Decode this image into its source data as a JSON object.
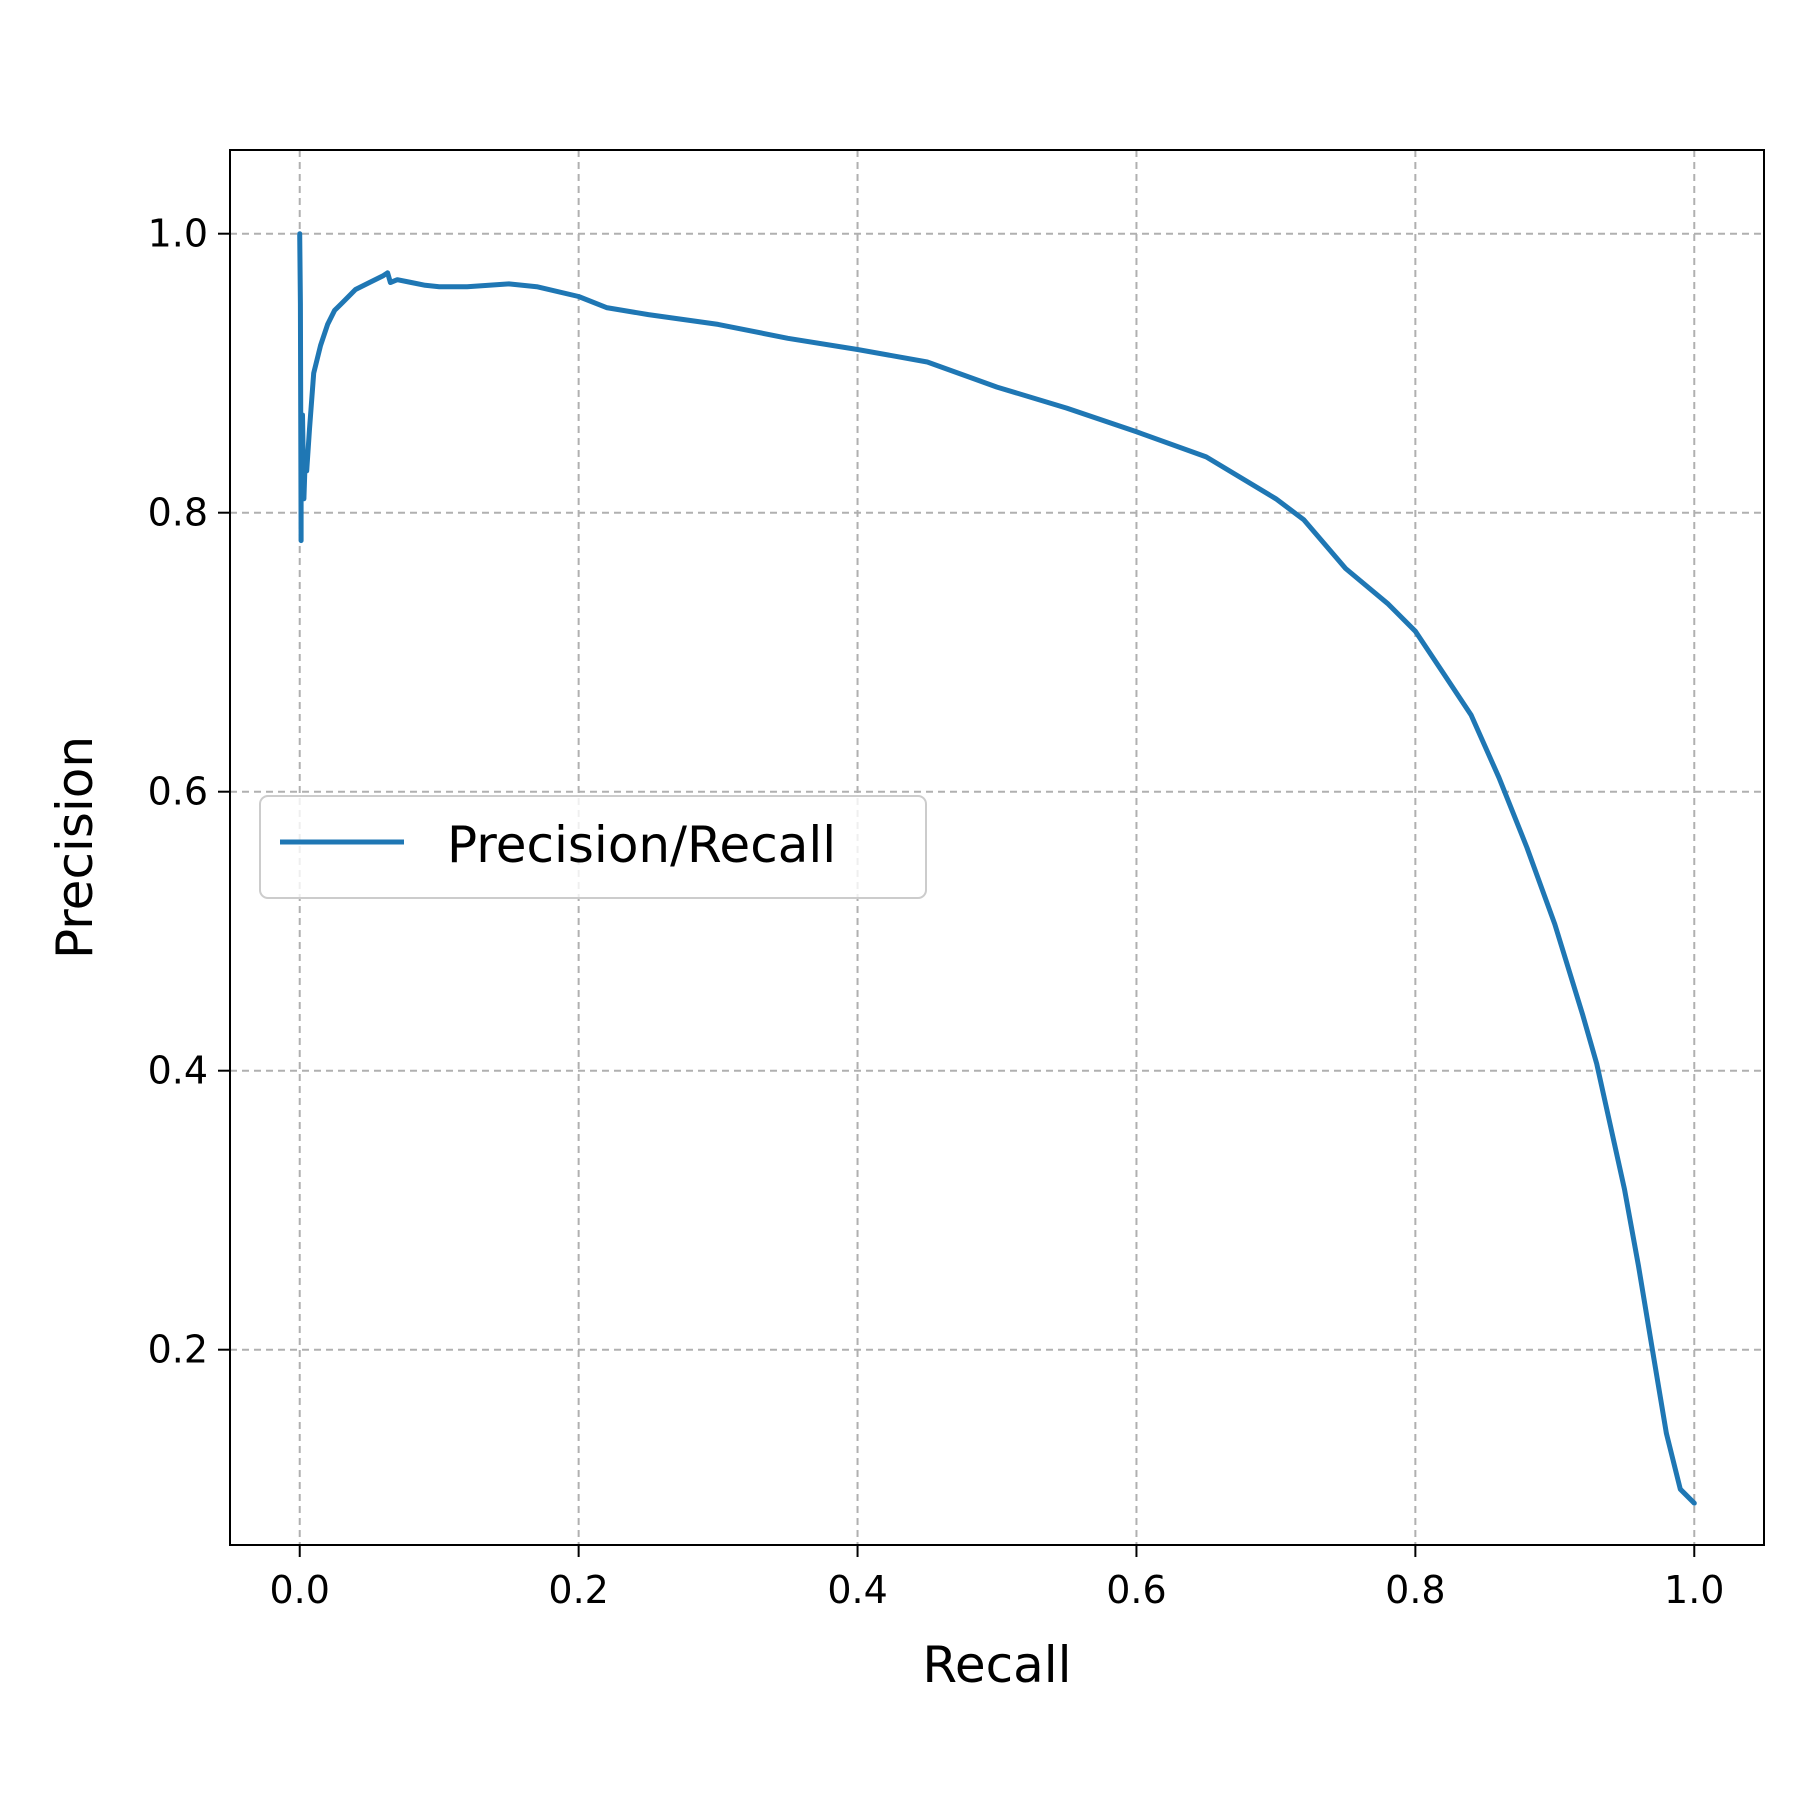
{
  "chart_data": {
    "type": "line",
    "title": "",
    "xlabel": "Recall",
    "ylabel": "Precision",
    "xlim": [
      -0.05,
      1.05
    ],
    "ylim": [
      0.06,
      1.06
    ],
    "grid": true,
    "legend_position": "center-left",
    "xticks": [
      0.0,
      0.2,
      0.4,
      0.6,
      0.8,
      1.0
    ],
    "xtick_labels": [
      "0.0",
      "0.2",
      "0.4",
      "0.6",
      "0.8",
      "1.0"
    ],
    "yticks": [
      0.2,
      0.4,
      0.6,
      0.8,
      1.0
    ],
    "ytick_labels": [
      "0.2",
      "0.4",
      "0.6",
      "0.8",
      "1.0"
    ],
    "series": [
      {
        "name": "Precision/Recall",
        "color": "#1f77b4",
        "x": [
          0.0,
          0.0005,
          0.001,
          0.001,
          0.0015,
          0.002,
          0.003,
          0.004,
          0.005,
          0.007,
          0.01,
          0.015,
          0.02,
          0.025,
          0.03,
          0.04,
          0.05,
          0.06,
          0.063,
          0.065,
          0.07,
          0.08,
          0.09,
          0.1,
          0.12,
          0.15,
          0.17,
          0.2,
          0.22,
          0.25,
          0.3,
          0.35,
          0.4,
          0.45,
          0.5,
          0.55,
          0.6,
          0.65,
          0.7,
          0.72,
          0.75,
          0.78,
          0.8,
          0.82,
          0.84,
          0.86,
          0.88,
          0.9,
          0.92,
          0.93,
          0.94,
          0.95,
          0.96,
          0.97,
          0.98,
          0.99,
          1.0
        ],
        "y": [
          1.0,
          0.95,
          0.78,
          0.82,
          0.86,
          0.87,
          0.81,
          0.84,
          0.83,
          0.86,
          0.9,
          0.92,
          0.935,
          0.945,
          0.95,
          0.96,
          0.965,
          0.97,
          0.972,
          0.965,
          0.967,
          0.965,
          0.963,
          0.962,
          0.962,
          0.964,
          0.962,
          0.955,
          0.947,
          0.942,
          0.935,
          0.925,
          0.917,
          0.908,
          0.89,
          0.875,
          0.858,
          0.84,
          0.81,
          0.795,
          0.76,
          0.735,
          0.715,
          0.685,
          0.655,
          0.61,
          0.56,
          0.505,
          0.44,
          0.405,
          0.36,
          0.315,
          0.26,
          0.2,
          0.14,
          0.1,
          0.09
        ]
      }
    ]
  }
}
